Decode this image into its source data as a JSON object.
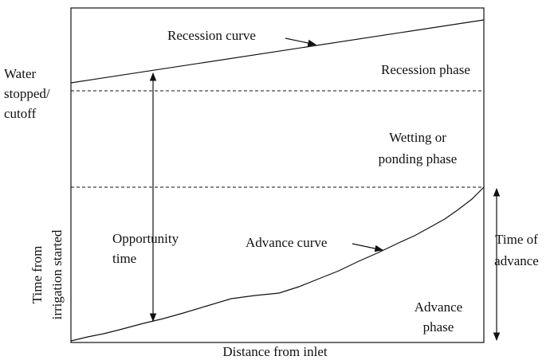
{
  "labels": {
    "recession_curve": "Recession curve",
    "recession_phase": "Recession phase",
    "water_stopped": [
      "Water",
      "stopped/",
      "cutoff"
    ],
    "wetting_phase": [
      "Wetting or",
      "ponding phase"
    ],
    "opportunity_time": [
      "Opportunity",
      "time"
    ],
    "advance_curve": "Advance curve",
    "time_of_advance": [
      "Time of",
      "advance"
    ],
    "advance_phase": [
      "Advance",
      "phase"
    ],
    "y_axis": [
      "Time from",
      "irrigation started"
    ],
    "x_axis": "Distance from inlet"
  }
}
